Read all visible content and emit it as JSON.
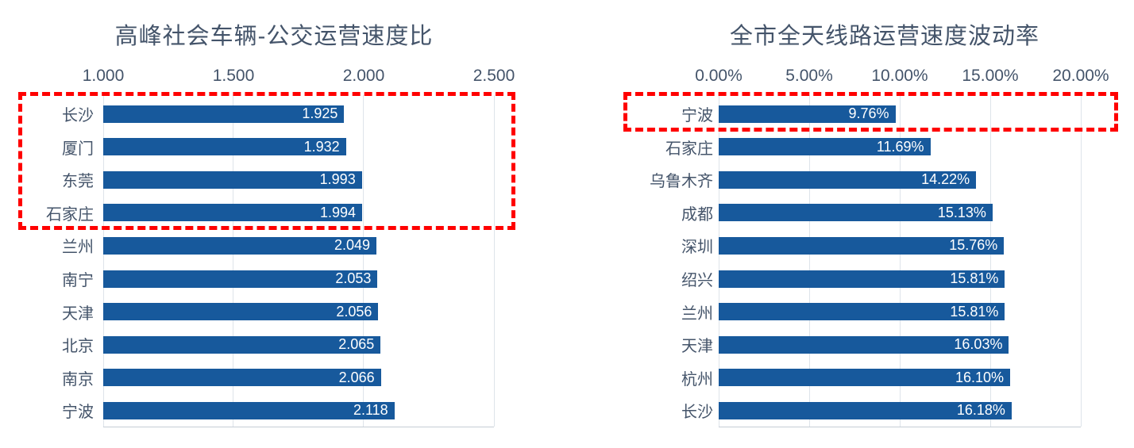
{
  "colors": {
    "bar": "#17599C",
    "text": "#44546A",
    "gridline": "#DEE4EA",
    "axis_line": "#C6CDD6",
    "highlight": "#FF0000",
    "value_label": "#FFFFFF",
    "background": "#FFFFFF"
  },
  "chart_data": [
    {
      "type": "bar",
      "orientation": "horizontal",
      "title": "高峰社会车辆-公交运营速度比",
      "categories": [
        "长沙",
        "厦门",
        "东莞",
        "石家庄",
        "兰州",
        "南宁",
        "天津",
        "北京",
        "南京",
        "宁波"
      ],
      "values": [
        1.925,
        1.932,
        1.993,
        1.994,
        2.049,
        2.053,
        2.056,
        2.065,
        2.066,
        2.118
      ],
      "data_labels": [
        "1.925",
        "1.932",
        "1.993",
        "1.994",
        "2.049",
        "2.053",
        "2.056",
        "2.065",
        "2.066",
        "2.118"
      ],
      "x_ticks": [
        "1.000",
        "1.500",
        "2.000",
        "2.500"
      ],
      "x_tick_values": [
        1.0,
        1.5,
        2.0,
        2.5
      ],
      "xlim": [
        1.0,
        2.5
      ],
      "grid": true,
      "legend": "none",
      "annotation": "red dashed box highlighting top four cities",
      "highlight_box": {
        "first_row": 0,
        "last_row": 3
      }
    },
    {
      "type": "bar",
      "orientation": "horizontal",
      "title": "全市全天线路运营速度波动率",
      "categories": [
        "宁波",
        "石家庄",
        "乌鲁木齐",
        "成都",
        "深圳",
        "绍兴",
        "兰州",
        "天津",
        "杭州",
        "长沙"
      ],
      "values": [
        9.76,
        11.69,
        14.22,
        15.13,
        15.76,
        15.81,
        15.81,
        16.03,
        16.1,
        16.18
      ],
      "data_labels": [
        "9.76%",
        "11.69%",
        "14.22%",
        "15.13%",
        "15.76%",
        "15.81%",
        "15.81%",
        "16.03%",
        "16.10%",
        "16.18%"
      ],
      "x_ticks": [
        "0.00%",
        "5.00%",
        "10.00%",
        "15.00%",
        "20.00%"
      ],
      "x_tick_values": [
        0,
        5,
        10,
        15,
        20
      ],
      "xlim": [
        0,
        20
      ],
      "grid": true,
      "legend": "none",
      "annotation": "red dashed box highlighting first city",
      "highlight_box": {
        "first_row": 0,
        "last_row": 0
      }
    }
  ]
}
